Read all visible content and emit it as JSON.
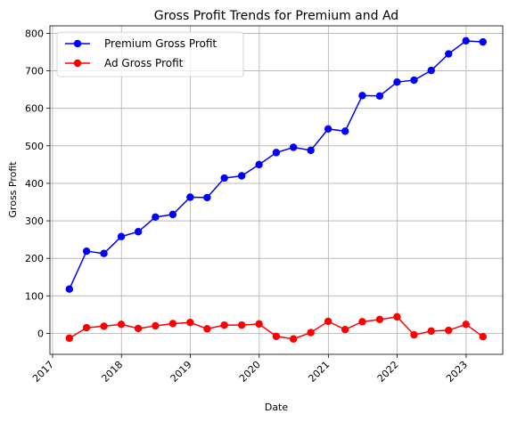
{
  "chart_data": {
    "type": "line",
    "title": "Gross Profit Trends for Premium and Ad",
    "xlabel": "Date",
    "ylabel": "Gross Profit",
    "x": [
      "2017-03-31",
      "2017-06-30",
      "2017-09-30",
      "2017-12-31",
      "2018-03-31",
      "2018-06-30",
      "2018-09-30",
      "2018-12-31",
      "2019-03-31",
      "2019-06-30",
      "2019-09-30",
      "2019-12-31",
      "2020-03-31",
      "2020-06-30",
      "2020-09-30",
      "2020-12-31",
      "2021-03-31",
      "2021-06-30",
      "2021-09-30",
      "2021-12-31",
      "2022-03-31",
      "2022-06-30",
      "2022-09-30",
      "2022-12-31",
      "2023-03-31"
    ],
    "series": [
      {
        "name": "Premium Gross Profit",
        "color": "#0000ff",
        "values": [
          118,
          219,
          213,
          258,
          271,
          310,
          317,
          363,
          362,
          414,
          420,
          450,
          482,
          496,
          488,
          545,
          539,
          634,
          633,
          670,
          675,
          701,
          745,
          780,
          777
        ]
      },
      {
        "name": "Ad Gross Profit",
        "color": "#ff0000",
        "values": [
          -13,
          15,
          19,
          24,
          13,
          20,
          26,
          29,
          12,
          22,
          22,
          25,
          -8,
          -15,
          2,
          32,
          10,
          31,
          37,
          44,
          -4,
          6,
          8,
          24,
          -9
        ]
      }
    ],
    "xlim": [
      "2016-12-18",
      "2023-07-14"
    ],
    "ylim": [
      -56,
      820
    ],
    "xticks": [
      "2017",
      "2018",
      "2019",
      "2020",
      "2021",
      "2022",
      "2023"
    ],
    "xtick_dates": [
      "2017-01-01",
      "2018-01-01",
      "2019-01-01",
      "2020-01-01",
      "2021-01-01",
      "2022-01-01",
      "2023-01-01"
    ],
    "yticks": [
      0,
      100,
      200,
      300,
      400,
      500,
      600,
      700,
      800
    ],
    "grid": true,
    "legend": "upper-left"
  }
}
